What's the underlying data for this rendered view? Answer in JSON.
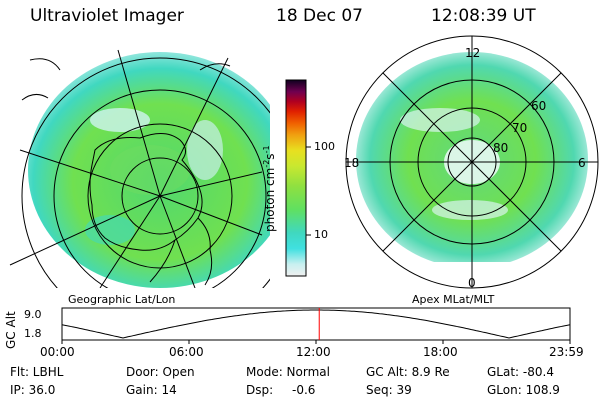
{
  "header": {
    "instrument": "Ultraviolet Imager",
    "date": "18 Dec 07",
    "time": "12:08:39 UT"
  },
  "colorbar": {
    "unit_label": "photon cm",
    "unit_sup1": "-2",
    "unit_s": "s",
    "unit_sup2": "-1",
    "tick_100": "100",
    "tick_10": "10",
    "stops": [
      "#e8e8e8",
      "#c8f0f0",
      "#40e0e0",
      "#40d8c0",
      "#60e060",
      "#90e040",
      "#c0e830",
      "#e8e020",
      "#f0b010",
      "#f07000",
      "#e02000",
      "#b00020",
      "#800050",
      "#400060",
      "#100020"
    ]
  },
  "left_map": {
    "caption": "Geographic Lat/Lon"
  },
  "right_map": {
    "caption": "Apex MLat/MLT",
    "mlt_top": "12",
    "mlt_left": "18",
    "mlt_right": "6",
    "mlt_bottom": "0",
    "lat_60": "60",
    "lat_70": "70",
    "lat_80": "80"
  },
  "altitude_plot": {
    "ylabel": "GC Alt",
    "y_top": "9.0",
    "y_bottom": "1.8",
    "x_ticks": [
      "00:00",
      "06:00",
      "12:00",
      "18:00",
      "23:59"
    ],
    "current_time_marker": "12:08:39",
    "marker_color": "#ff0000"
  },
  "status": {
    "flt": "Flt: LBHL",
    "ip": "IP: 36.0",
    "door": "Door: Open",
    "gain": "Gain: 14",
    "mode": "Mode: Normal",
    "dsp": "Dsp:",
    "dsp_value": "-0.6",
    "gcalt": "GC Alt: 8.9 Re",
    "seq": "Seq: 39",
    "glat": "GLat: -80.4",
    "glon": "GLon: 108.9"
  }
}
